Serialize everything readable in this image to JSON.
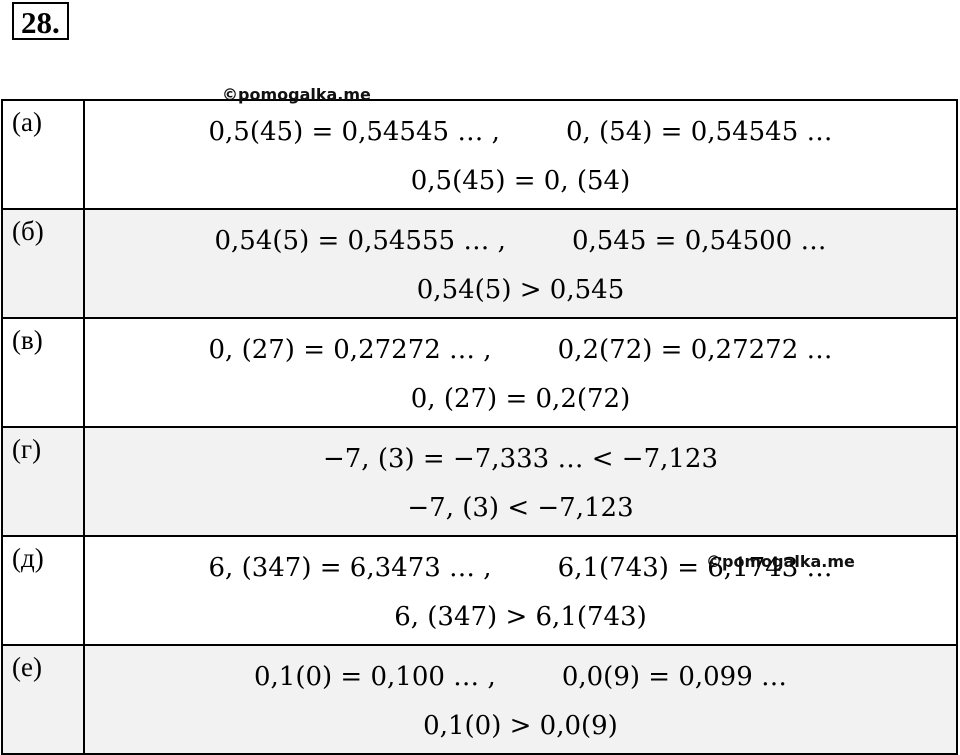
{
  "problem_number": "28.",
  "watermarks": [
    "©pomogalka.me",
    "©pomogalka.me"
  ],
  "rows": [
    {
      "label": "(а)",
      "line1": "0,5(45) = 0,54545 … ,        0, (54) = 0,54545 …",
      "line2": "0,5(45) = 0, (54)"
    },
    {
      "label": "(б)",
      "line1": "0,54(5) = 0,54555 … ,        0,545 = 0,54500 …",
      "line2": "0,54(5) > 0,545"
    },
    {
      "label": "(в)",
      "line1": "0, (27) = 0,27272 … ,        0,2(72) = 0,27272 …",
      "line2": "0, (27) = 0,2(72)"
    },
    {
      "label": "(г)",
      "line1": "−7, (3) = −7,333 … < −7,123",
      "line2": "−7, (3) < −7,123"
    },
    {
      "label": "(д)",
      "line1": "6, (347) = 6,3473 … ,        6,1(743) = 6,1743 …",
      "line2": "6, (347) > 6,1(743)"
    },
    {
      "label": "(е)",
      "line1": "0,1(0) = 0,100 … ,        0,0(9) = 0,099 …",
      "line2": "0,1(0) > 0,0(9)"
    }
  ]
}
